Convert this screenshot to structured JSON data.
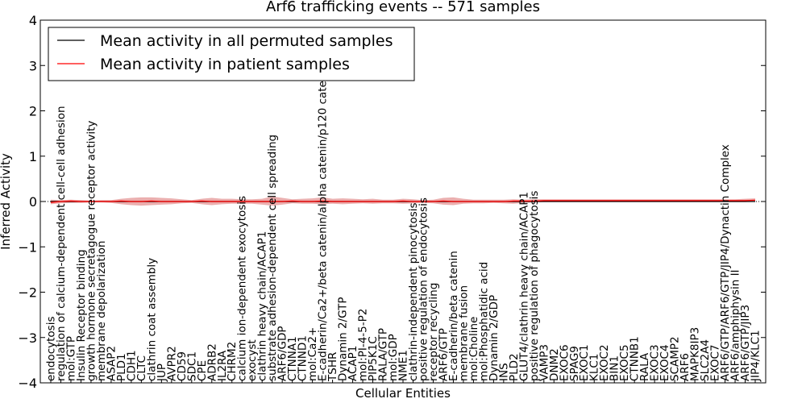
{
  "chart_data": {
    "type": "line",
    "title": "Arf6 trafficking events -- 571 samples",
    "xlabel": "Cellular Entities",
    "ylabel": "Inferred Activity",
    "ylim": [
      -4,
      4
    ],
    "yticks": [
      -4,
      -3,
      -2,
      -1,
      0,
      1,
      2,
      3,
      4
    ],
    "ytick_labels": [
      "−4",
      "−3",
      "−2",
      "−1",
      "0",
      "1",
      "2",
      "3",
      "4"
    ],
    "legend": {
      "placement": "top-left",
      "entries": [
        {
          "label": "Mean activity in all permuted samples",
          "color": "#000000"
        },
        {
          "label": "Mean activity in patient samples",
          "color": "#ff0000"
        }
      ]
    },
    "categories": [
      "endocytosis",
      "regulation of calcium-dependent cell-cell adhesion",
      "mol:GTP",
      "Insulin Receptor binding",
      "growth hormone secretagogue receptor activity",
      "membrane depolarization",
      "ASAP2",
      "PLD1",
      "CDH1",
      "CLTC",
      "clathrin coat assembly",
      "JUP",
      "AVPR2",
      "CD59",
      "SDC1",
      "CPE",
      "ADRB2",
      "IL2RA",
      "CHRM2",
      "calcium ion-dependent exocytosis",
      "exocyst",
      "clathrin heavy chain/ACAP1",
      "substrate adhesion-dependent cell spreading",
      "ARF6/GDP",
      "CTNNA1",
      "CTNND1",
      "mol:Ca2+",
      "E-cadherin/Ca2+/beta catenin/alpha catenin/p120 catenin",
      "TSHR",
      "Dynamin 2/GTP",
      "ACAP1",
      "mol:PI-4-5-P2",
      "PIP5K1C",
      "RALA/GTP",
      "mol:GDP",
      "NME1",
      "clathrin-independent pinocytosis",
      "positive regulation of endocytosis",
      "receptor recycling",
      "ARF6/GTP",
      "E-cadherin/beta catenin",
      "membrane fusion",
      "mol:Choline",
      "mol:Phosphatidic acid",
      "Dynamin 2/GDP",
      "INS",
      "PLD2",
      "GLUT4/clathrin heavy chain/ACAP1",
      "positive regulation of phagocytosis",
      "VAMP3",
      "DNM2",
      "EXOC6",
      "SPAG9",
      "EXOC1",
      "KLC1",
      "EXOC2",
      "BIN1",
      "EXOC5",
      "CTNNB1",
      "RALA",
      "EXOC3",
      "EXOC4",
      "SCAMP2",
      "ARF6",
      "MAPK8IP3",
      "SLC2A4",
      "EXOC7",
      "ARF6/GTP/ARF6/GTP/JIP4/Dynactin Complex",
      "ARF6/amphiphysin II",
      "ARF6/GTP/JIP3",
      "JIP4/KLC1"
    ],
    "series": [
      {
        "name": "Mean activity in all permuted samples",
        "color": "#000000",
        "values": [
          0,
          0,
          0,
          0,
          0,
          0,
          0,
          0,
          0,
          0,
          0,
          0,
          0,
          0,
          0,
          0,
          0,
          0,
          0,
          0,
          0,
          0,
          0,
          0,
          0,
          0,
          0,
          0,
          0,
          0,
          0,
          0,
          0,
          0,
          0,
          0,
          0,
          0,
          0,
          0,
          0,
          0,
          0,
          0,
          0,
          0,
          0,
          0,
          0,
          0,
          0,
          0,
          0,
          0,
          0,
          0,
          0,
          0,
          0,
          0,
          0,
          0,
          0,
          0,
          0,
          0,
          0,
          0,
          0,
          0,
          0
        ]
      },
      {
        "name": "Mean activity in patient samples",
        "color": "#ff0000",
        "values": [
          -0.02,
          0,
          0.01,
          0,
          0,
          0,
          0,
          0.01,
          0,
          0,
          0.01,
          0,
          0,
          0,
          0,
          0.01,
          0,
          0,
          0,
          0,
          0,
          0,
          0,
          0,
          0.01,
          0,
          0,
          0.01,
          0,
          0,
          0,
          0,
          0,
          0,
          0,
          0.01,
          0,
          0,
          0,
          0.01,
          0,
          0,
          0,
          0,
          0,
          0,
          0.01,
          0.01,
          0.01,
          0.02,
          0.02,
          0.02,
          0.02,
          0.02,
          0.02,
          0.02,
          0.02,
          0.02,
          0.02,
          0.02,
          0.02,
          0.02,
          0.02,
          0.02,
          0.02,
          0.02,
          0.02,
          0.02,
          0.02,
          0.02,
          0.03
        ]
      }
    ],
    "spread_upper": [
      0.04,
      0.03,
      0.04,
      0.03,
      0.02,
      0.03,
      0.03,
      0.06,
      0.08,
      0.09,
      0.09,
      0.08,
      0.07,
      0.05,
      0.03,
      0.06,
      0.08,
      0.06,
      0.06,
      0.05,
      0.05,
      0.06,
      0.11,
      0.08,
      0.05,
      0.06,
      0.07,
      0.09,
      0.06,
      0.07,
      0.06,
      0.05,
      0.06,
      0.04,
      0.04,
      0.06,
      0.05,
      0.03,
      0.04,
      0.08,
      0.09,
      0.06,
      0.04,
      0.04,
      0.04,
      0.04,
      0.05,
      0.04,
      0.05,
      0.05,
      0.05,
      0.05,
      0.05,
      0.05,
      0.05,
      0.05,
      0.05,
      0.05,
      0.05,
      0.05,
      0.05,
      0.05,
      0.05,
      0.05,
      0.05,
      0.05,
      0.05,
      0.05,
      0.05,
      0.06,
      0.07
    ],
    "spread_lower": [
      -0.06,
      -0.04,
      -0.03,
      -0.03,
      -0.02,
      -0.02,
      -0.03,
      -0.06,
      -0.08,
      -0.09,
      -0.08,
      -0.07,
      -0.06,
      -0.04,
      -0.03,
      -0.06,
      -0.08,
      -0.06,
      -0.05,
      -0.05,
      -0.05,
      -0.07,
      -0.09,
      -0.07,
      -0.04,
      -0.05,
      -0.05,
      -0.06,
      -0.05,
      -0.06,
      -0.05,
      -0.04,
      -0.05,
      -0.04,
      -0.04,
      -0.05,
      -0.04,
      -0.03,
      -0.04,
      -0.07,
      -0.08,
      -0.05,
      -0.04,
      -0.04,
      -0.03,
      -0.04,
      -0.05,
      -0.03,
      -0.02,
      -0.01,
      -0.01,
      -0.01,
      -0.01,
      -0.01,
      -0.01,
      -0.01,
      -0.01,
      -0.01,
      -0.01,
      -0.01,
      -0.01,
      -0.01,
      -0.01,
      -0.01,
      -0.01,
      -0.01,
      -0.01,
      -0.01,
      -0.01,
      -0.01,
      0
    ]
  }
}
